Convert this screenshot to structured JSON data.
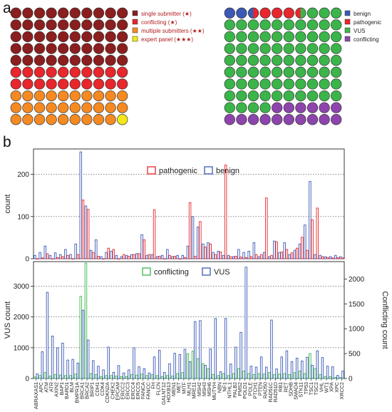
{
  "panel_a_label": "a",
  "panel_b_label": "b",
  "chart_data": [
    {
      "type": "waffle",
      "legend": [
        {
          "label": "single submitter (★)",
          "color": "#8b1e1e"
        },
        {
          "label": "conflicting (★)",
          "color": "#e8262b"
        },
        {
          "label": "multiple submitters (★★)",
          "color": "#f58a22"
        },
        {
          "label": "expert panel (★★★)",
          "color": "#f4e718"
        }
      ],
      "counts": [
        50,
        20,
        29,
        1
      ]
    },
    {
      "type": "waffle",
      "legend": [
        {
          "label": "benign",
          "color": "#3b59b5"
        },
        {
          "label": "pathogenic",
          "color": "#e8262b"
        },
        {
          "label": "VUS",
          "color": "#3bb54a"
        },
        {
          "label": "conflicting",
          "color": "#8e44ad"
        }
      ],
      "counts": [
        2.5,
        3.5,
        77,
        17
      ]
    },
    {
      "type": "bar",
      "ylabel": "count",
      "ylim": [
        0,
        260
      ],
      "yticks": [
        0,
        100,
        200
      ],
      "legend": [
        "pathogenic",
        "benign"
      ],
      "series_colors": {
        "pathogenic": "#e8262b",
        "benign": "#3b59b5"
      },
      "categories": [
        "ABRAXAS1",
        "APC",
        "ATM",
        "ATR",
        "AXIN2",
        "BAP1",
        "BARD1",
        "BLM",
        "BMPR1A",
        "BRCA1",
        "BRCA2",
        "BRIP1",
        "CDH1",
        "CDK4",
        "CDKN2A",
        "CHEK2",
        "EPCAM",
        "ERCC2",
        "ERCC3",
        "ERCC4",
        "ERCC5",
        "FANCA",
        "FANCC",
        "FH",
        "FLCN",
        "GALNT12",
        "HOXB13",
        "MEN1",
        "MET",
        "MITF",
        "MLH1",
        "MRE11",
        "MSH2",
        "MSH3",
        "MSH6",
        "MUTYH",
        "NBN",
        "NF1",
        "NTHL1",
        "PALB2",
        "PMS2",
        "POLD1",
        "POLE",
        "PTCH1",
        "PTEN",
        "RAD50",
        "RAD51C",
        "RAD51D",
        "RB1",
        "RET",
        "SDHB",
        "SMAD4",
        "STK11",
        "TP53",
        "TSC1",
        "TSC2",
        "VHL",
        "WT1",
        "XPA",
        "XPC",
        "XRCC2"
      ],
      "series": [
        {
          "name": "pathogenic",
          "values": [
            0,
            2,
            12,
            0,
            3,
            5,
            8,
            0,
            10,
            139,
            117,
            15,
            6,
            0,
            25,
            22,
            0,
            10,
            6,
            10,
            12,
            45,
            10,
            116,
            6,
            0,
            8,
            6,
            0,
            3,
            133,
            6,
            88,
            28,
            35,
            10,
            16,
            222,
            5,
            6,
            4,
            3,
            5,
            10,
            10,
            144,
            8,
            40,
            16,
            22,
            14,
            25,
            51,
            20,
            92,
            120,
            5,
            3,
            2,
            3,
            2
          ]
        },
        {
          "name": "benign",
          "values": [
            8,
            15,
            30,
            8,
            14,
            10,
            22,
            10,
            35,
            253,
            125,
            20,
            45,
            5,
            15,
            18,
            8,
            5,
            8,
            10,
            12,
            57,
            8,
            10,
            5,
            8,
            22,
            5,
            8,
            8,
            30,
            100,
            75,
            35,
            38,
            15,
            18,
            8,
            8,
            5,
            22,
            15,
            18,
            38,
            5,
            15,
            5,
            42,
            15,
            38,
            10,
            20,
            35,
            80,
            183,
            10,
            8,
            5,
            5,
            8,
            5
          ]
        }
      ]
    },
    {
      "type": "bar",
      "ylabel": "VUS count",
      "y2label": "Conflicting count",
      "ylim": [
        0,
        3800
      ],
      "yticks": [
        0,
        1000,
        2000,
        3000
      ],
      "y2lim": [
        0,
        2350
      ],
      "y2ticks": [
        0,
        500,
        1000,
        1500,
        2000
      ],
      "legend": [
        "conflicting",
        "VUS"
      ],
      "series_colors": {
        "conflicting": "#3bb54a",
        "VUS": "#3b59b5"
      },
      "categories": [
        "ABRAXAS1",
        "APC",
        "ATM",
        "ATR",
        "AXIN2",
        "BAP1",
        "BARD1",
        "BLM",
        "BMPR1A",
        "BRCA1",
        "BRCA2",
        "BRIP1",
        "CDH1",
        "CDK4",
        "CDKN2A",
        "CHEK2",
        "EPCAM",
        "ERCC2",
        "ERCC3",
        "ERCC4",
        "ERCC5",
        "FANCA",
        "FANCC",
        "FH",
        "FLCN",
        "GALNT12",
        "HOXB13",
        "MEN1",
        "MET",
        "MITF",
        "MLH1",
        "MRE11",
        "MSH2",
        "MSH3",
        "MSH6",
        "MUTYH",
        "NBN",
        "NF1",
        "NTHL1",
        "PALB2",
        "PMS2",
        "POLD1",
        "POLE",
        "PTCH1",
        "PTEN",
        "RAD50",
        "RAD51C",
        "RAD51D",
        "RB1",
        "RET",
        "SDHB",
        "SMAD4",
        "STK11",
        "TP53",
        "TSC1",
        "TSC2",
        "VHL",
        "WT1",
        "XPA",
        "XPC",
        "XRCC2"
      ],
      "series": [
        {
          "name": "VUS",
          "values": [
            150,
            870,
            2800,
            1380,
            1000,
            1150,
            600,
            620,
            500,
            2220,
            1250,
            580,
            400,
            280,
            1020,
            200,
            420,
            180,
            280,
            1000,
            380,
            320,
            180,
            700,
            920,
            200,
            480,
            820,
            780,
            950,
            550,
            1850,
            1880,
            430,
            960,
            1950,
            220,
            1950,
            470,
            1020,
            1500,
            3620,
            400,
            370,
            700,
            370,
            1900,
            310,
            700,
            900,
            550,
            660,
            570,
            690,
            430,
            900,
            680,
            400,
            380,
            100,
            240
          ]
        },
        {
          "name": "conflicting",
          "values": [
            30,
            60,
            120,
            50,
            80,
            70,
            60,
            60,
            90,
            1650,
            2320,
            100,
            80,
            40,
            60,
            60,
            50,
            40,
            40,
            80,
            70,
            90,
            60,
            80,
            60,
            40,
            60,
            50,
            100,
            120,
            500,
            550,
            400,
            300,
            200,
            80,
            60,
            100,
            60,
            100,
            200,
            150,
            100,
            80,
            100,
            90,
            120,
            80,
            90,
            100,
            80,
            120,
            150,
            100,
            500,
            200,
            80,
            40,
            40,
            20,
            20
          ]
        }
      ]
    }
  ]
}
